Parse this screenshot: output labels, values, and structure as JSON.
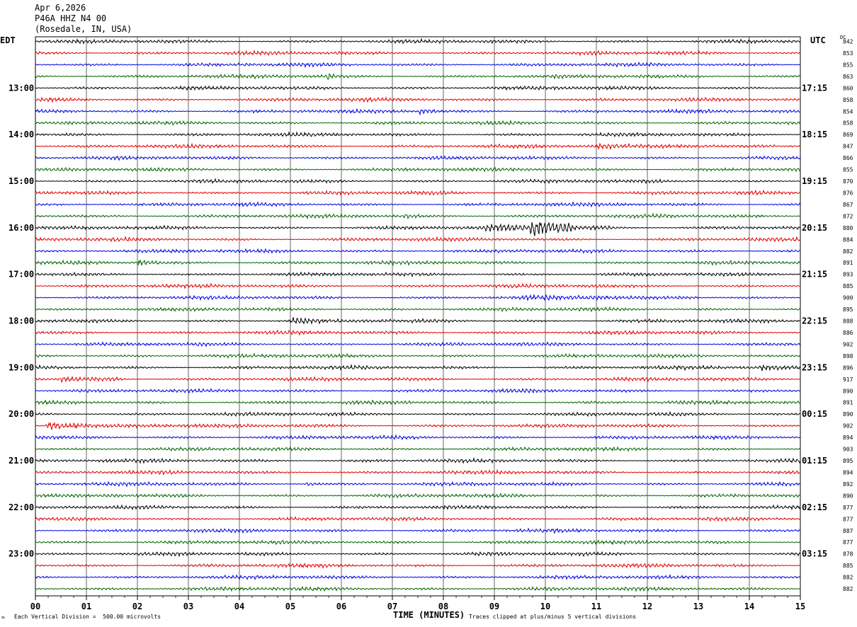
{
  "header": {
    "date": "Apr 6,2026",
    "station": "P46A HHZ N4 00",
    "location": "(Rosedale, IN, USA)"
  },
  "left_zone": "EDT",
  "right_zone": "UTC",
  "dc_label": "DC",
  "footer": {
    "scale_note": "Each Vertical Division =  500.00 microvolts",
    "clip_note": "Traces clipped at plus/minus 5 vertical divisions",
    "corner_mark": "≈"
  },
  "chart_data": {
    "type": "line",
    "title": "",
    "xlabel": "TIME (MINUTES)",
    "x_ticks": [
      "00",
      "01",
      "02",
      "03",
      "04",
      "05",
      "06",
      "07",
      "08",
      "09",
      "10",
      "11",
      "12",
      "13",
      "14",
      "15"
    ],
    "xlim": [
      0,
      15
    ],
    "grid": "vertical lines every minute",
    "left_times": [
      "13:00",
      "14:00",
      "15:00",
      "16:00",
      "17:00",
      "18:00",
      "19:00",
      "20:00",
      "21:00",
      "22:00",
      "23:00"
    ],
    "right_times": [
      "17:15",
      "18:15",
      "19:15",
      "20:15",
      "21:15",
      "22:15",
      "23:15",
      "00:15",
      "01:15",
      "02:15",
      "03:15"
    ],
    "trace_colors": [
      "#000000",
      "#e00000",
      "#0000e0",
      "#006400"
    ],
    "dc_offsets": [
      842,
      853,
      855,
      863,
      860,
      858,
      854,
      858,
      869,
      847,
      866,
      855,
      870,
      876,
      867,
      872,
      880,
      884,
      882,
      891,
      893,
      885,
      900,
      895,
      888,
      886,
      902,
      898,
      896,
      917,
      890,
      891,
      890,
      902,
      894,
      903,
      895,
      894,
      892,
      890,
      877,
      877,
      887,
      877,
      878,
      885,
      882,
      882
    ],
    "events": [
      {
        "trace": 3,
        "minute": 5.7,
        "duration": 0.2,
        "amplitude": 2.2
      },
      {
        "trace": 6,
        "minute": 7.5,
        "duration": 0.6,
        "amplitude": 1.4
      },
      {
        "trace": 9,
        "minute": 11.0,
        "duration": 3.5,
        "amplitude": 1.2
      },
      {
        "trace": 15,
        "minute": 7.2,
        "duration": 0.5,
        "amplitude": 1.3
      },
      {
        "trace": 16,
        "minute": 9.7,
        "duration": 0.8,
        "amplitude": 5.0
      },
      {
        "trace": 16,
        "minute": 8.8,
        "duration": 2.5,
        "amplitude": 2.0
      },
      {
        "trace": 19,
        "minute": 2.0,
        "duration": 0.8,
        "amplitude": 1.3
      },
      {
        "trace": 22,
        "minute": 9.5,
        "duration": 3.5,
        "amplitude": 1.4
      },
      {
        "trace": 24,
        "minute": 5.0,
        "duration": 1.5,
        "amplitude": 1.4
      },
      {
        "trace": 28,
        "minute": 14.2,
        "duration": 0.8,
        "amplitude": 1.6
      },
      {
        "trace": 29,
        "minute": 0.5,
        "duration": 1.2,
        "amplitude": 1.6
      },
      {
        "trace": 33,
        "minute": 0.2,
        "duration": 2.5,
        "amplitude": 1.5
      },
      {
        "trace": 38,
        "minute": 5.3,
        "duration": 0.3,
        "amplitude": 1.3
      }
    ]
  }
}
